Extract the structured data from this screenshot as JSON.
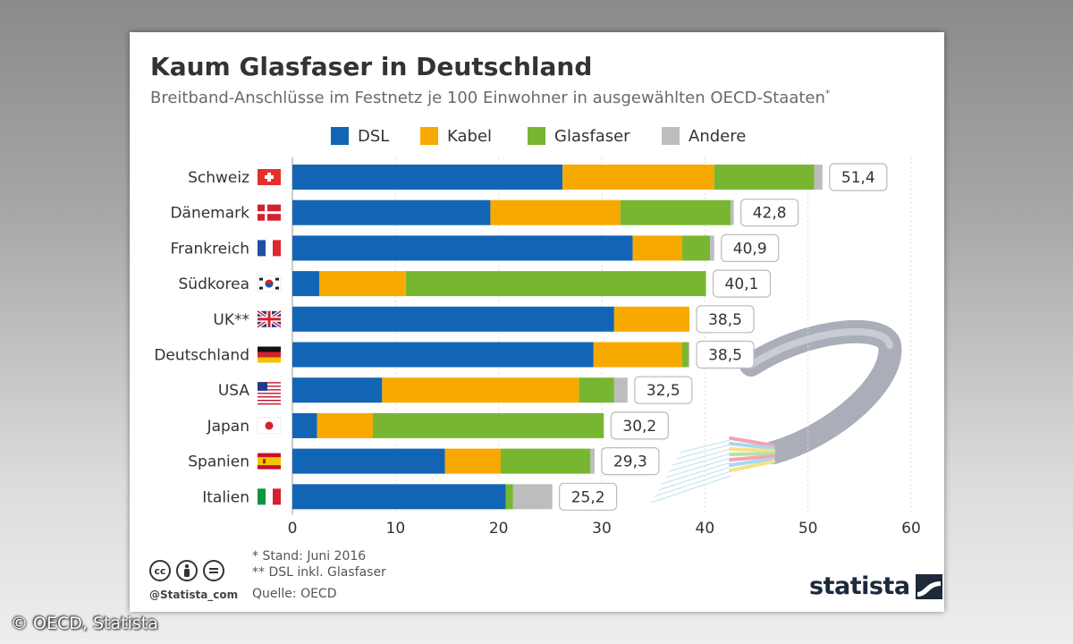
{
  "title": "Kaum Glasfaser in Deutschland",
  "subtitle": "Breitband-Anschlüsse im Festnetz je 100 Einwohner in ausgewählten OECD-Staaten",
  "subtitle_mark": "*",
  "colors": {
    "DSL": "#1265b5",
    "Kabel": "#f8a900",
    "Glasfaser": "#78b632",
    "Andere": "#bdbdbd"
  },
  "chart_data": {
    "type": "stacked-bar-horizontal",
    "title": "Kaum Glasfaser in Deutschland",
    "xlim": [
      0,
      60
    ],
    "x_ticks": [
      "0",
      "10",
      "20",
      "30",
      "40",
      "50",
      "60"
    ],
    "legend": [
      "DSL",
      "Kabel",
      "Glasfaser",
      "Andere"
    ],
    "categories": [
      "Schweiz",
      "Dänemark",
      "Frankreich",
      "Südkorea",
      "UK**",
      "Deutschland",
      "USA",
      "Japan",
      "Spanien",
      "Italien"
    ],
    "flags": [
      "flag-switzerland-icon",
      "flag-denmark-icon",
      "flag-france-icon",
      "flag-south-korea-icon",
      "flag-uk-icon",
      "flag-germany-icon",
      "flag-usa-icon",
      "flag-japan-icon",
      "flag-spain-icon",
      "flag-italy-icon"
    ],
    "series": [
      {
        "name": "DSL",
        "values": [
          26.2,
          19.2,
          33.0,
          2.6,
          31.2,
          29.2,
          8.7,
          2.4,
          14.8,
          20.7
        ]
      },
      {
        "name": "Kabel",
        "values": [
          14.7,
          12.6,
          4.8,
          8.4,
          7.3,
          8.6,
          19.1,
          5.4,
          5.4,
          0.0
        ]
      },
      {
        "name": "Glasfaser",
        "values": [
          9.7,
          10.7,
          2.7,
          29.1,
          0.0,
          0.6,
          3.4,
          22.4,
          8.7,
          0.7
        ]
      },
      {
        "name": "Andere",
        "values": [
          0.8,
          0.3,
          0.4,
          0.0,
          0.0,
          0.1,
          1.3,
          0.0,
          0.4,
          3.8
        ]
      }
    ],
    "totals": [
      "51,4",
      "42,8",
      "40,9",
      "40,1",
      "38,5",
      "38,5",
      "32,5",
      "30,2",
      "29,3",
      "25,2"
    ]
  },
  "footnotes": [
    "*  Stand: Juni 2016",
    "** DSL inkl. Glasfaser"
  ],
  "source": "Quelle: OECD",
  "handle": "@Statista_com",
  "brand": "statista",
  "copyright": "© OECD, Statista"
}
